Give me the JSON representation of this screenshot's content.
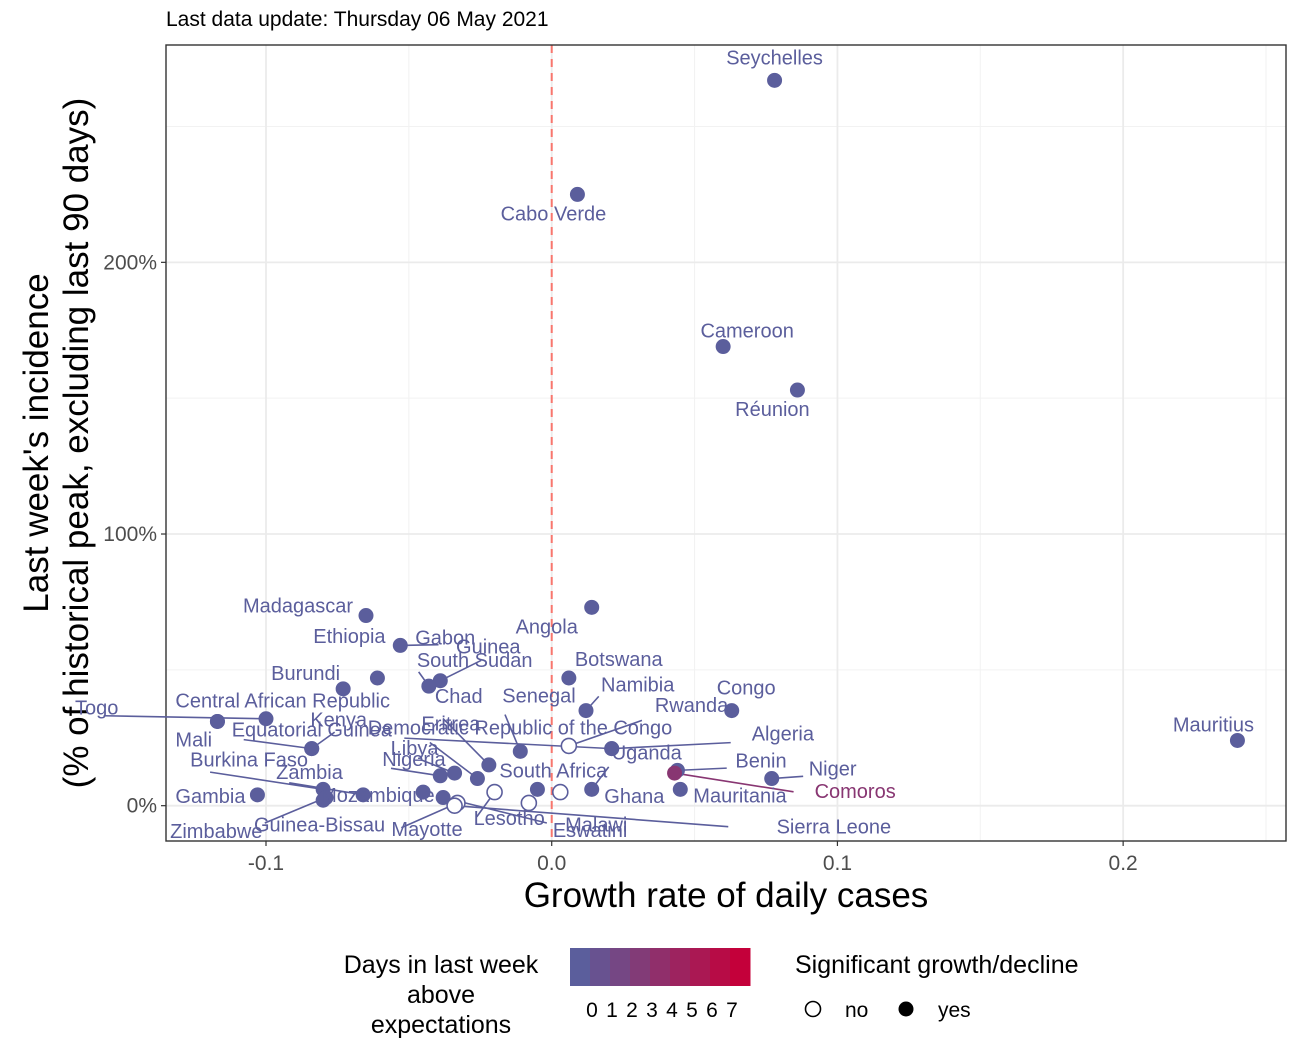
{
  "subtitle": "Last data update: Thursday 06 May 2021",
  "chart_data": {
    "type": "scatter",
    "xlabel": "Growth rate of daily cases",
    "ylabel_line1": "Last week's incidence",
    "ylabel_line2": "(% of historical peak, excluding last 90 days)",
    "xlim": [
      -0.135,
      0.257
    ],
    "ylim": [
      -13,
      280
    ],
    "x_ticks": [
      -0.1,
      0.0,
      0.1,
      0.2
    ],
    "x_tick_labels": [
      "-0.1",
      "0.0",
      "0.1",
      "0.2"
    ],
    "y_ticks": [
      0,
      100,
      200
    ],
    "y_tick_labels": [
      "0%",
      "100%",
      "200%"
    ],
    "grid": true,
    "reference_line": {
      "x": 0,
      "color": "#f8766d",
      "style": "dashed"
    },
    "colors": {
      "days_0": "#5b5e9c",
      "days_3": "#9b4a76",
      "days_7": "#c4003a"
    },
    "points": [
      {
        "label": "Seychelles",
        "x": 0.078,
        "y": 267,
        "days": 0,
        "sig": true
      },
      {
        "label": "Cabo Verde",
        "x": 0.009,
        "y": 225,
        "days": 0,
        "sig": true
      },
      {
        "label": "Cameroon",
        "x": 0.06,
        "y": 169,
        "days": 0,
        "sig": true
      },
      {
        "label": "Réunion",
        "x": 0.086,
        "y": 153,
        "days": 0,
        "sig": true
      },
      {
        "label": "Mauritius",
        "x": 0.24,
        "y": 24,
        "days": 0,
        "sig": true
      },
      {
        "label": "Madagascar",
        "x": -0.065,
        "y": 70,
        "days": 0,
        "sig": true
      },
      {
        "label": "Gabon",
        "x": -0.053,
        "y": 59,
        "days": 0,
        "sig": true
      },
      {
        "label": "Angola",
        "x": 0.014,
        "y": 73,
        "days": 0,
        "sig": true
      },
      {
        "label": "Ethiopia",
        "x": -0.061,
        "y": 47,
        "days": 0,
        "sig": true
      },
      {
        "label": "Guinea",
        "x": -0.039,
        "y": 46,
        "days": 0,
        "sig": true
      },
      {
        "label": "Togo",
        "x": -0.1,
        "y": 32,
        "days": 0,
        "sig": true
      },
      {
        "label": "Burundi",
        "x": -0.073,
        "y": 43,
        "days": 0,
        "sig": true
      },
      {
        "label": "South Sudan",
        "x": -0.043,
        "y": 44,
        "days": 0,
        "sig": true
      },
      {
        "label": "Botswana",
        "x": 0.006,
        "y": 47,
        "days": 0,
        "sig": true
      },
      {
        "label": "Central African Republic",
        "x": -0.117,
        "y": 31,
        "days": 0,
        "sig": true
      },
      {
        "label": "Kenya",
        "x": -0.084,
        "y": 21,
        "days": 0,
        "sig": true
      },
      {
        "label": "Libya",
        "x": -0.034,
        "y": 12,
        "days": 0,
        "sig": true
      },
      {
        "label": "Chad",
        "x": -0.022,
        "y": 15,
        "days": 0,
        "sig": true
      },
      {
        "label": "Senegal",
        "x": -0.011,
        "y": 20,
        "days": 0,
        "sig": true
      },
      {
        "label": "Namibia",
        "x": 0.012,
        "y": 35,
        "days": 0,
        "sig": true
      },
      {
        "label": "Congo",
        "x": 0.063,
        "y": 35,
        "days": 0,
        "sig": true
      },
      {
        "label": "Mali",
        "x": -0.117,
        "y": 31,
        "days": 0,
        "sig": true
      },
      {
        "label": "Equatorial Guinea",
        "x": -0.084,
        "y": 21,
        "days": 0,
        "sig": true
      },
      {
        "label": "Democratic Republic of the Congo",
        "x": 0.021,
        "y": 21,
        "days": 0,
        "sig": true
      },
      {
        "label": "Eritrea",
        "x": -0.026,
        "y": 10,
        "days": 0,
        "sig": true
      },
      {
        "label": "Rwanda",
        "x": 0.006,
        "y": 22,
        "days": 0,
        "sig": false
      },
      {
        "label": "Algeria",
        "x": 0.021,
        "y": 21,
        "days": 0,
        "sig": true
      },
      {
        "label": "Nigeria",
        "x": -0.039,
        "y": 11,
        "days": 0,
        "sig": true
      },
      {
        "label": "Uganda",
        "x": 0.014,
        "y": 6,
        "days": 0,
        "sig": true
      },
      {
        "label": "Benin",
        "x": 0.044,
        "y": 13,
        "days": 0,
        "sig": true
      },
      {
        "label": "Niger",
        "x": 0.077,
        "y": 10,
        "days": 0,
        "sig": true
      },
      {
        "label": "Burkina Faso",
        "x": -0.08,
        "y": 6,
        "days": 0,
        "sig": true
      },
      {
        "label": "Zambia",
        "x": -0.066,
        "y": 4,
        "days": 0,
        "sig": true
      },
      {
        "label": "South Africa",
        "x": -0.005,
        "y": 6,
        "days": 0,
        "sig": true
      },
      {
        "label": "Comoros",
        "x": 0.043,
        "y": 12,
        "days": 3,
        "sig": true
      },
      {
        "label": "Gambia",
        "x": -0.103,
        "y": 4,
        "days": 0,
        "sig": true
      },
      {
        "label": "Mozambique",
        "x": -0.045,
        "y": 5,
        "days": 0,
        "sig": true
      },
      {
        "label": "Ghana",
        "x": 0.003,
        "y": 5,
        "days": 0,
        "sig": false
      },
      {
        "label": "Mauritania",
        "x": 0.045,
        "y": 6,
        "days": 0,
        "sig": true
      },
      {
        "label": "Zimbabwe",
        "x": -0.08,
        "y": 2,
        "days": 0,
        "sig": true
      },
      {
        "label": "Guinea-Bissau",
        "x": -0.079,
        "y": 3,
        "days": 0,
        "sig": true
      },
      {
        "label": "Mayotte",
        "x": -0.033,
        "y": 1,
        "days": 0,
        "sig": false
      },
      {
        "label": "Lesotho",
        "x": -0.02,
        "y": 5,
        "days": 0,
        "sig": false
      },
      {
        "label": "Eswatini",
        "x": -0.008,
        "y": 1,
        "days": 0,
        "sig": false
      },
      {
        "label": "Malawi",
        "x": -0.038,
        "y": 3,
        "days": 0,
        "sig": true
      },
      {
        "label": "Sierra Leone",
        "x": -0.034,
        "y": 0,
        "days": 0,
        "sig": false
      }
    ],
    "legend_days": {
      "title_lines": [
        "Days in last week",
        "above",
        "expectations"
      ],
      "ticks": [
        "0",
        "1",
        "2",
        "3",
        "4",
        "5",
        "6",
        "7"
      ]
    },
    "legend_sig": {
      "title": "Significant growth/decline",
      "items": [
        "no",
        "yes"
      ]
    }
  }
}
